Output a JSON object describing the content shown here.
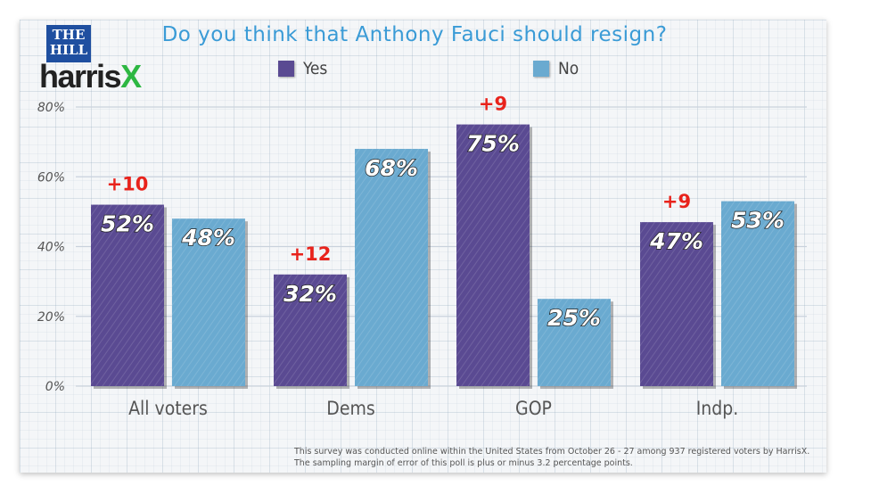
{
  "logo": {
    "top": "THE",
    "bottom": "HILL",
    "brand_main": "harris",
    "brand_x": "X"
  },
  "colors": {
    "yes": "#5a4a92",
    "no": "#6aaad0",
    "title": "#3a9bd6",
    "diff": "#e8231c"
  },
  "footnote": {
    "line1": "This survey was conducted online within the United States from October 26 - 27 among 937 registered voters by HarrisX.",
    "line2": "The sampling margin of error of this poll is plus or minus 3.2 percentage points."
  },
  "chart_data": {
    "type": "bar",
    "title": "Do you think that Anthony Fauci should resign?",
    "categories": [
      "All voters",
      "Dems",
      "GOP",
      "Indp."
    ],
    "series": [
      {
        "name": "Yes",
        "values": [
          52,
          32,
          75,
          47
        ],
        "labels": [
          "52%",
          "32%",
          "75%",
          "47%"
        ]
      },
      {
        "name": "No",
        "values": [
          48,
          68,
          25,
          53
        ],
        "labels": [
          "48%",
          "68%",
          "25%",
          "53%"
        ]
      }
    ],
    "differences": [
      "+10",
      "+12",
      "+9",
      "+9"
    ],
    "ylim": [
      0,
      80
    ],
    "yticks": [
      0,
      20,
      40,
      60,
      80
    ],
    "ytick_labels": [
      "0%",
      "20%",
      "40%",
      "60%",
      "80%"
    ],
    "xlabel": "",
    "ylabel": "",
    "legend_position": "top-center"
  }
}
